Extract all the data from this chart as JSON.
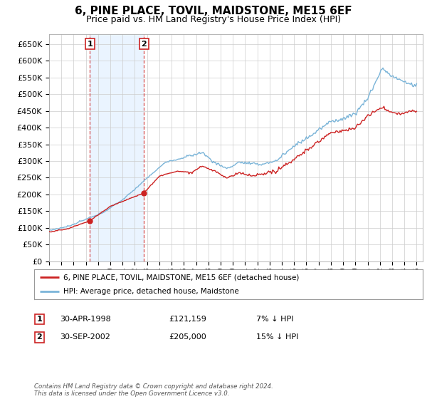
{
  "title": "6, PINE PLACE, TOVIL, MAIDSTONE, ME15 6EF",
  "subtitle": "Price paid vs. HM Land Registry's House Price Index (HPI)",
  "ylim": [
    0,
    680000
  ],
  "yticks": [
    0,
    50000,
    100000,
    150000,
    200000,
    250000,
    300000,
    350000,
    400000,
    450000,
    500000,
    550000,
    600000,
    650000
  ],
  "ytick_labels": [
    "£0",
    "£50K",
    "£100K",
    "£150K",
    "£200K",
    "£250K",
    "£300K",
    "£350K",
    "£400K",
    "£450K",
    "£500K",
    "£550K",
    "£600K",
    "£650K"
  ],
  "hpi_color": "#7ab4d8",
  "price_color": "#cc2222",
  "marker_color": "#cc2222",
  "shade_color": "#ddeeff",
  "sale1_date": 1998.33,
  "sale1_price": 121159,
  "sale1_label": "1",
  "sale2_date": 2002.75,
  "sale2_price": 205000,
  "sale2_label": "2",
  "legend_property": "6, PINE PLACE, TOVIL, MAIDSTONE, ME15 6EF (detached house)",
  "legend_hpi": "HPI: Average price, detached house, Maidstone",
  "table_row1_num": "1",
  "table_row1_date": "30-APR-1998",
  "table_row1_price": "£121,159",
  "table_row1_hpi": "7% ↓ HPI",
  "table_row2_num": "2",
  "table_row2_date": "30-SEP-2002",
  "table_row2_price": "£205,000",
  "table_row2_hpi": "15% ↓ HPI",
  "footnote": "Contains HM Land Registry data © Crown copyright and database right 2024.\nThis data is licensed under the Open Government Licence v3.0.",
  "background_color": "#ffffff",
  "grid_color": "#cccccc"
}
